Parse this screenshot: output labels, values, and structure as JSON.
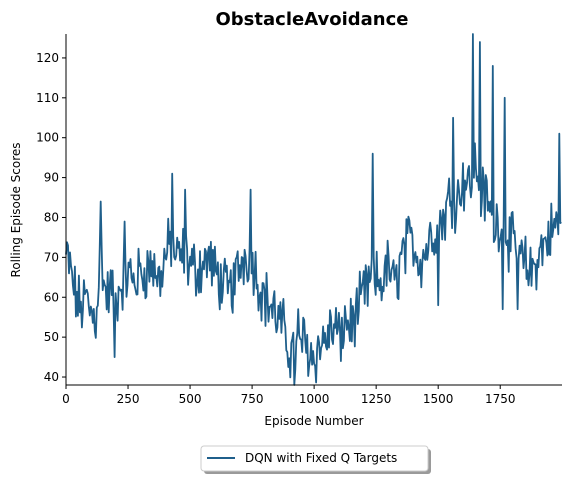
{
  "chart_data": {
    "type": "line",
    "title": "ObstacleAvoidance",
    "xlabel": "Episode Number",
    "ylabel": "Rolling Episode Scores",
    "xlim": [
      0,
      1999
    ],
    "ylim": [
      38,
      126
    ],
    "xticks": [
      0,
      250,
      500,
      750,
      1000,
      1250,
      1500,
      1750
    ],
    "yticks": [
      40,
      50,
      60,
      70,
      80,
      90,
      100,
      110,
      120
    ],
    "grid": false,
    "legend": {
      "placement": "bottom-center"
    },
    "series": [
      {
        "name": "DQN with Fixed Q Targets",
        "color": "#1f5f8b",
        "anchors": [
          [
            0,
            70
          ],
          [
            20,
            66
          ],
          [
            40,
            60
          ],
          [
            60,
            57
          ],
          [
            80,
            60
          ],
          [
            100,
            56
          ],
          [
            120,
            55
          ],
          [
            140,
            72
          ],
          [
            160,
            60
          ],
          [
            180,
            62
          ],
          [
            200,
            59
          ],
          [
            220,
            63
          ],
          [
            250,
            66
          ],
          [
            275,
            64
          ],
          [
            300,
            66
          ],
          [
            325,
            67
          ],
          [
            350,
            68
          ],
          [
            375,
            64
          ],
          [
            400,
            70
          ],
          [
            425,
            74
          ],
          [
            450,
            69
          ],
          [
            475,
            71
          ],
          [
            500,
            68
          ],
          [
            525,
            67
          ],
          [
            550,
            68
          ],
          [
            575,
            70
          ],
          [
            600,
            66
          ],
          [
            625,
            64
          ],
          [
            650,
            61
          ],
          [
            675,
            63
          ],
          [
            700,
            68
          ],
          [
            725,
            71
          ],
          [
            750,
            70
          ],
          [
            775,
            64
          ],
          [
            800,
            60
          ],
          [
            825,
            58
          ],
          [
            850,
            55
          ],
          [
            875,
            52
          ],
          [
            900,
            47
          ],
          [
            925,
            46
          ],
          [
            950,
            50
          ],
          [
            975,
            47
          ],
          [
            1000,
            45
          ],
          [
            1025,
            48
          ],
          [
            1050,
            50
          ],
          [
            1075,
            52
          ],
          [
            1100,
            52
          ],
          [
            1125,
            54
          ],
          [
            1150,
            53
          ],
          [
            1175,
            56
          ],
          [
            1200,
            61
          ],
          [
            1225,
            63
          ],
          [
            1250,
            64
          ],
          [
            1275,
            64
          ],
          [
            1300,
            68
          ],
          [
            1325,
            62
          ],
          [
            1350,
            70
          ],
          [
            1375,
            73
          ],
          [
            1400,
            74
          ],
          [
            1425,
            69
          ],
          [
            1450,
            72
          ],
          [
            1475,
            76
          ],
          [
            1500,
            79
          ],
          [
            1525,
            80
          ],
          [
            1550,
            86
          ],
          [
            1575,
            84
          ],
          [
            1600,
            90
          ],
          [
            1625,
            88
          ],
          [
            1650,
            94
          ],
          [
            1675,
            86
          ],
          [
            1700,
            84
          ],
          [
            1725,
            78
          ],
          [
            1750,
            80
          ],
          [
            1775,
            76
          ],
          [
            1800,
            73
          ],
          [
            1825,
            70
          ],
          [
            1850,
            68
          ],
          [
            1875,
            66
          ],
          [
            1900,
            70
          ],
          [
            1925,
            73
          ],
          [
            1950,
            76
          ],
          [
            1975,
            78
          ],
          [
            1999,
            80
          ]
        ],
        "spikes": [
          [
            10,
            73
          ],
          [
            140,
            84
          ],
          [
            195,
            45
          ],
          [
            235,
            79
          ],
          [
            430,
            91
          ],
          [
            480,
            87
          ],
          [
            745,
            87
          ],
          [
            920,
            38
          ],
          [
            935,
            57
          ],
          [
            1235,
            96
          ],
          [
            1560,
            105
          ],
          [
            1640,
            126
          ],
          [
            1670,
            124
          ],
          [
            1720,
            118
          ],
          [
            1770,
            110
          ],
          [
            1990,
            101
          ],
          [
            1760,
            57
          ],
          [
            1820,
            57
          ],
          [
            1500,
            58
          ],
          [
            1110,
            44
          ]
        ],
        "noise_amplitude": 6
      }
    ]
  }
}
